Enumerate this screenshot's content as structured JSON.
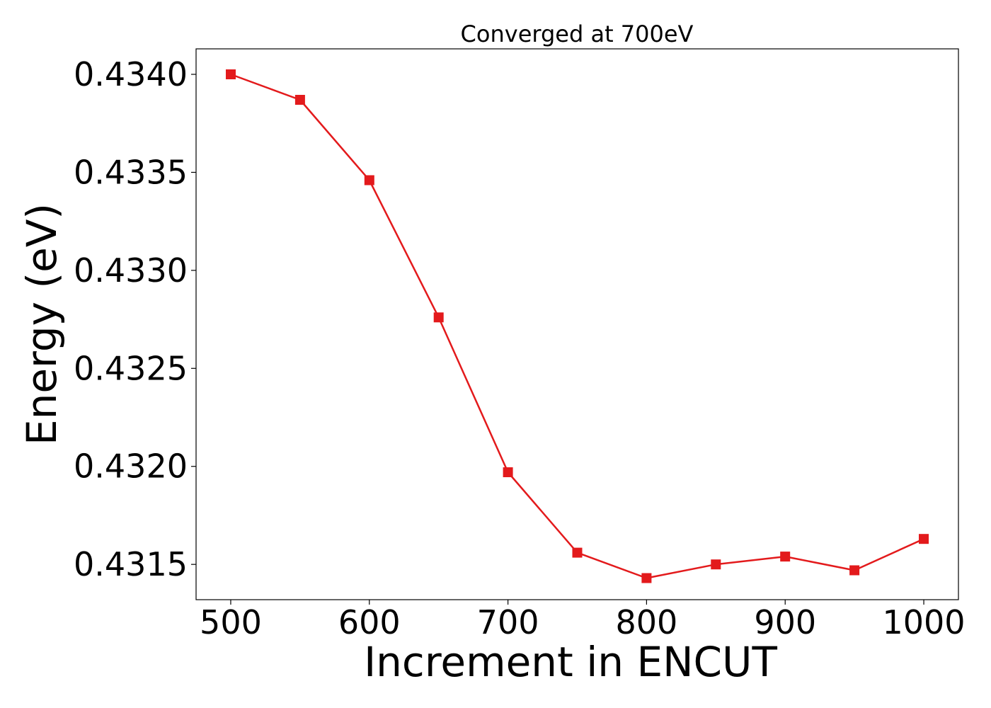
{
  "chart_data": {
    "type": "line",
    "title": "Converged at 700eV",
    "xlabel": "Increment in ENCUT",
    "ylabel": "Energy (eV)",
    "x": [
      500,
      550,
      600,
      650,
      700,
      750,
      800,
      850,
      900,
      950,
      1000
    ],
    "series": [
      {
        "values": [
          0.434,
          0.43387,
          0.43346,
          0.43276,
          0.43197,
          0.43156,
          0.43143,
          0.4315,
          0.43154,
          0.43147,
          0.43163
        ],
        "color": "#e31a1c",
        "marker": "square"
      }
    ],
    "xlim": [
      475,
      1025
    ],
    "ylim": [
      0.43132,
      0.43413
    ],
    "xticks": [
      500,
      600,
      700,
      800,
      900,
      1000
    ],
    "xtick_labels": [
      "500",
      "600",
      "700",
      "800",
      "900",
      "1000"
    ],
    "yticks": [
      0.4315,
      0.432,
      0.4325,
      0.433,
      0.4335,
      0.434
    ],
    "ytick_labels": [
      "0.4315",
      "0.4320",
      "0.4325",
      "0.4330",
      "0.4335",
      "0.4340"
    ],
    "grid": false,
    "legend": false
  }
}
